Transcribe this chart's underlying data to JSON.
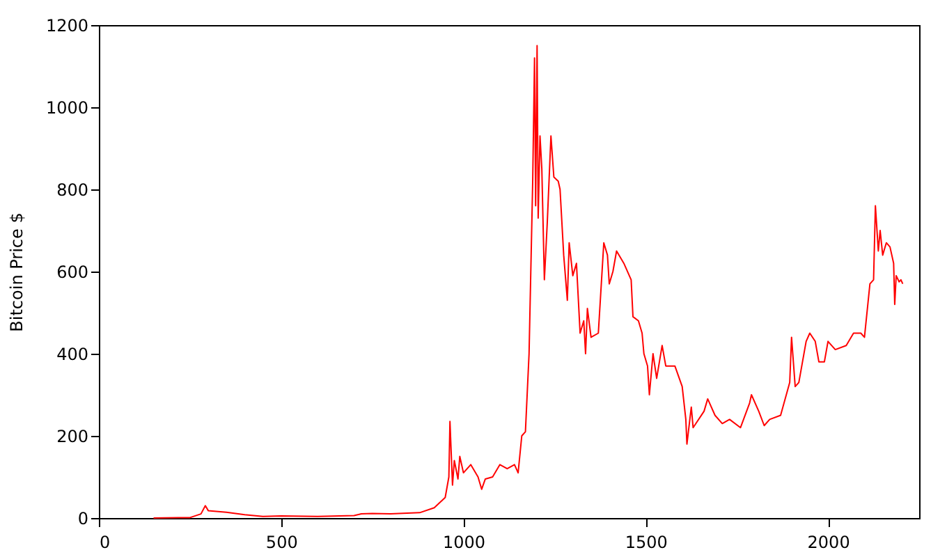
{
  "chart_data": {
    "type": "line",
    "ylabel": "Bitcoin Price $",
    "x": [
      150,
      250,
      280,
      292,
      300,
      350,
      400,
      450,
      500,
      600,
      700,
      720,
      750,
      800,
      880,
      920,
      950,
      960,
      963,
      970,
      975,
      985,
      990,
      1000,
      1020,
      1040,
      1050,
      1060,
      1080,
      1100,
      1120,
      1140,
      1150,
      1160,
      1170,
      1180,
      1190,
      1195,
      1198,
      1202,
      1205,
      1210,
      1215,
      1222,
      1230,
      1240,
      1248,
      1260,
      1265,
      1275,
      1285,
      1290,
      1300,
      1310,
      1320,
      1330,
      1335,
      1340,
      1350,
      1370,
      1385,
      1395,
      1400,
      1410,
      1420,
      1440,
      1460,
      1465,
      1480,
      1490,
      1495,
      1505,
      1510,
      1520,
      1530,
      1545,
      1555,
      1580,
      1600,
      1610,
      1613,
      1625,
      1630,
      1660,
      1670,
      1690,
      1710,
      1730,
      1760,
      1785,
      1790,
      1810,
      1825,
      1840,
      1870,
      1895,
      1900,
      1910,
      1920,
      1940,
      1950,
      1965,
      1975,
      1990,
      2000,
      2020,
      2050,
      2070,
      2090,
      2100,
      2115,
      2125,
      2130,
      2138,
      2143,
      2150,
      2160,
      2170,
      2180,
      2183,
      2187,
      2195,
      2200,
      2205
    ],
    "series": [
      {
        "color": "#ff0000",
        "values": [
          0,
          1,
          10,
          30,
          18,
          14,
          8,
          4,
          5,
          4,
          6,
          10,
          11,
          10,
          13,
          25,
          50,
          100,
          235,
          80,
          140,
          95,
          150,
          110,
          130,
          100,
          70,
          95,
          100,
          130,
          120,
          130,
          110,
          200,
          210,
          400,
          820,
          1120,
          760,
          1150,
          730,
          930,
          850,
          580,
          720,
          930,
          830,
          820,
          800,
          640,
          530,
          670,
          590,
          620,
          450,
          480,
          400,
          510,
          440,
          450,
          670,
          640,
          570,
          600,
          650,
          620,
          580,
          490,
          480,
          450,
          400,
          370,
          300,
          400,
          340,
          420,
          370,
          370,
          320,
          240,
          180,
          270,
          220,
          260,
          290,
          250,
          230,
          240,
          220,
          280,
          300,
          260,
          225,
          240,
          250,
          330,
          440,
          320,
          330,
          430,
          450,
          430,
          380,
          380,
          430,
          410,
          420,
          450,
          450,
          440,
          570,
          580,
          760,
          650,
          700,
          640,
          670,
          660,
          620,
          520,
          590,
          575,
          580,
          570
        ]
      }
    ],
    "xlim": [
      0,
      2250
    ],
    "xticks": [
      0,
      500,
      1000,
      1500,
      2000
    ],
    "ylim": [
      0,
      1200
    ],
    "yticks": [
      0,
      200,
      400,
      600,
      800,
      1000,
      1200
    ],
    "grid": false
  }
}
